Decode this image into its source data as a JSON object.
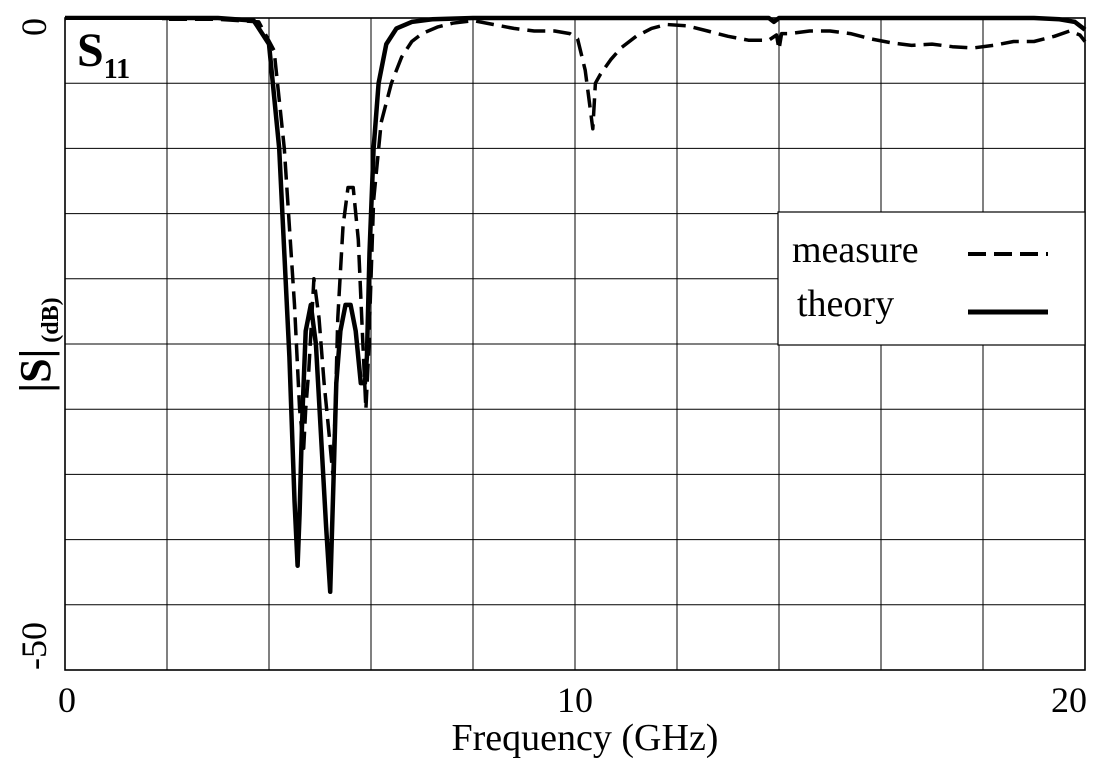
{
  "chart_data": {
    "type": "line",
    "title": "",
    "panel_label": {
      "main": "S",
      "sub": "11"
    },
    "xlabel": "Frequency (GHz)",
    "ylabel": {
      "main": "|S|",
      "sub": "(dB)"
    },
    "xlim": [
      0,
      20
    ],
    "ylim": [
      -50,
      0
    ],
    "x_ticks": [
      {
        "value": 0,
        "label": "0"
      },
      {
        "value": 10,
        "label": "10"
      },
      {
        "value": 20,
        "label": "20"
      }
    ],
    "y_ticks": [
      {
        "value": 0,
        "label": "0"
      },
      {
        "value": -50,
        "label": "-50"
      }
    ],
    "grid": true,
    "grid_x_step": 2,
    "grid_y_step": 5,
    "legend_position": "right",
    "series": [
      {
        "name": "measure",
        "style": "dashed",
        "x": [
          0,
          1,
          2,
          3,
          3.8,
          4.1,
          4.3,
          4.5,
          4.6,
          4.68,
          4.72,
          4.78,
          4.88,
          4.98,
          5.08,
          5.18,
          5.25,
          5.3,
          5.35,
          5.45,
          5.55,
          5.65,
          5.75,
          5.83,
          5.9,
          5.95,
          6.05,
          6.2,
          6.4,
          6.6,
          6.8,
          7.0,
          7.3,
          7.6,
          8.0,
          8.4,
          8.8,
          9.2,
          9.6,
          9.9,
          10.05,
          10.2,
          10.3,
          10.35,
          10.4,
          10.5,
          10.7,
          10.9,
          11.2,
          11.5,
          11.8,
          12.2,
          12.6,
          13.0,
          13.4,
          13.8,
          13.95,
          14.0,
          14.05,
          14.2,
          14.6,
          15.0,
          15.4,
          15.8,
          16.2,
          16.6,
          17.0,
          17.4,
          17.8,
          18.2,
          18.6,
          19.0,
          19.4,
          19.7,
          19.9,
          20.0
        ],
        "y": [
          0,
          0,
          -0.1,
          -0.1,
          -0.3,
          -2.5,
          -10,
          -22,
          -30,
          -33,
          -30,
          -27,
          -20,
          -23,
          -28,
          -32,
          -35,
          -30,
          -23,
          -16,
          -13,
          -13,
          -17,
          -24,
          -30,
          -26,
          -14,
          -8,
          -5,
          -3,
          -1.8,
          -1.2,
          -0.7,
          -0.4,
          -0.2,
          -0.5,
          -0.8,
          -1.0,
          -1.0,
          -1.2,
          -1.6,
          -4,
          -7,
          -8.5,
          -5,
          -4.3,
          -3.2,
          -2.3,
          -1.4,
          -0.8,
          -0.5,
          -0.6,
          -1.0,
          -1.4,
          -1.7,
          -1.7,
          -1.3,
          -2.4,
          -1.2,
          -1.2,
          -1.0,
          -1.0,
          -1.2,
          -1.6,
          -1.9,
          -2.1,
          -2.0,
          -2.2,
          -2.3,
          -2.1,
          -1.8,
          -1.8,
          -1.4,
          -1.0,
          -1.3,
          -1.8
        ]
      },
      {
        "name": "theory",
        "style": "solid",
        "x": [
          0,
          1,
          2,
          3,
          3.7,
          4.0,
          4.2,
          4.4,
          4.5,
          4.56,
          4.6,
          4.65,
          4.72,
          4.82,
          4.92,
          5.02,
          5.12,
          5.2,
          5.26,
          5.32,
          5.4,
          5.5,
          5.6,
          5.7,
          5.8,
          5.88,
          5.92,
          5.97,
          6.05,
          6.15,
          6.3,
          6.5,
          6.8,
          7.2,
          8,
          9,
          10,
          11,
          12,
          13,
          13.8,
          13.9,
          14,
          15,
          16,
          17,
          18,
          19,
          19.5,
          19.8,
          20
        ],
        "y": [
          0,
          0,
          0,
          0,
          -0.2,
          -2,
          -10,
          -26,
          -37,
          -42,
          -38,
          -31,
          -24,
          -22,
          -25,
          -32,
          -39,
          -44,
          -36,
          -28,
          -24,
          -22,
          -22,
          -24,
          -28,
          -28,
          -26,
          -18,
          -10,
          -5,
          -2,
          -0.8,
          -0.3,
          -0.1,
          0,
          0,
          0,
          0,
          0,
          0,
          0,
          -0.3,
          0,
          0,
          0,
          0,
          0,
          0,
          -0.1,
          -0.3,
          -0.9
        ]
      }
    ]
  }
}
